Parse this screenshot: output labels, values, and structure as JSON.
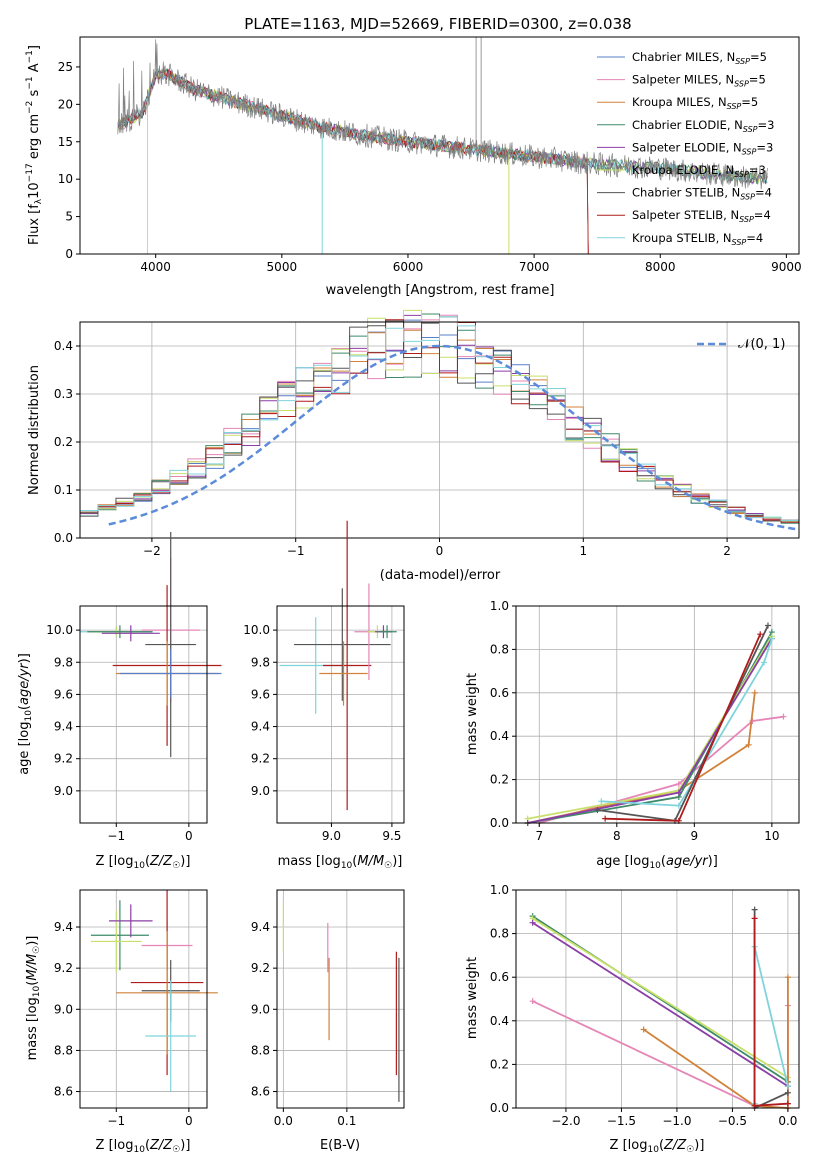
{
  "title": "PLATE=1163, MJD=52669, FIBERID=0300, z=0.038",
  "colors": {
    "Chabrier MILES": "#5a7fc9",
    "Salpeter MILES": "#e585b8",
    "Kroupa MILES": "#d1823a",
    "Chabrier ELODIE": "#3e8a6a",
    "Salpeter ELODIE": "#8a3fa6",
    "Kroupa ELODIE": "#c8e06a",
    "Chabrier STELIB": "#555555",
    "Salpeter STELIB": "#b01c1c",
    "Kroupa STELIB": "#7fd4db",
    "data": "#808080",
    "normal": "#5b8bd9",
    "grid": "#b0b0b0"
  },
  "panels": {
    "spectrum": {
      "xlabel": "wavelength [Angstrom, rest frame]",
      "ylabel_main": "Flux [f",
      "ylabel_sub": "λ",
      "ylabel_mid": "10",
      "ylabel_exp1": "−17",
      "ylabel_rest": " erg cm",
      "ylabel_exp2": "−2",
      "ylabel_s": " s",
      "ylabel_exp3": "−1",
      "ylabel_end": " A",
      "ylabel_exp4": "−1",
      "ylabel_close": "]",
      "xticks": [
        "4000",
        "5000",
        "6000",
        "7000",
        "8000",
        "9000"
      ],
      "yticks": [
        "0",
        "5",
        "10",
        "15",
        "20",
        "25"
      ]
    },
    "residuals": {
      "xlabel": "(data-model)/error",
      "ylabel": "Normed distribution",
      "xticks": [
        "−2",
        "−1",
        "0",
        "1",
        "2"
      ],
      "yticks": [
        "0.0",
        "0.1",
        "0.2",
        "0.3",
        "0.4"
      ],
      "normal_label": "𝒩(0, 1)"
    },
    "age_Z": {
      "xlabel": "Z [log10(Z/Z☉)]",
      "ylabel": "age  [log10(age/yr)]",
      "xticks": [
        "−1",
        "0"
      ],
      "yticks": [
        "9.0",
        "9.2",
        "9.4",
        "9.6",
        "9.8",
        "10.0"
      ]
    },
    "age_mass": {
      "xlabel": "mass [log10(M/M☉)]",
      "xticks": [
        "9.0",
        "9.5"
      ],
      "yticks": [
        "9.0",
        "9.2",
        "9.4",
        "9.6",
        "9.8",
        "10.0"
      ]
    },
    "weight_age": {
      "xlabel": "age  [log10(age/yr)]",
      "ylabel": "mass weight",
      "xticks": [
        "7",
        "8",
        "9",
        "10"
      ],
      "yticks": [
        "0.0",
        "0.2",
        "0.4",
        "0.6",
        "0.8",
        "1.0"
      ]
    },
    "mass_Z": {
      "xlabel": "Z [log10(Z/Z☉)]",
      "ylabel": "mass [log10(M/M☉)]",
      "xticks": [
        "−1",
        "0"
      ],
      "yticks": [
        "8.6",
        "8.8",
        "9.0",
        "9.2",
        "9.4"
      ]
    },
    "mass_ebv": {
      "xlabel": "E(B-V)",
      "xticks": [
        "0.0",
        "0.1"
      ],
      "yticks": [
        "8.6",
        "8.8",
        "9.0",
        "9.2",
        "9.4"
      ]
    },
    "weight_Z": {
      "xlabel": "Z [log10(Z/Z☉)]",
      "ylabel": "mass weight",
      "xticks": [
        "−2.0",
        "−1.5",
        "−1.0",
        "−0.5",
        "0.0"
      ],
      "yticks": [
        "0.0",
        "0.2",
        "0.4",
        "0.6",
        "0.8",
        "1.0"
      ]
    }
  },
  "legend": [
    {
      "name": "Chabrier MILES",
      "nssp": "5"
    },
    {
      "name": "Salpeter MILES",
      "nssp": "5"
    },
    {
      "name": "Kroupa MILES",
      "nssp": "5"
    },
    {
      "name": "Chabrier ELODIE",
      "nssp": "3"
    },
    {
      "name": "Salpeter ELODIE",
      "nssp": "3"
    },
    {
      "name": "Kroupa ELODIE",
      "nssp": "3"
    },
    {
      "name": "Chabrier STELIB",
      "nssp": "4"
    },
    {
      "name": "Salpeter STELIB",
      "nssp": "4"
    },
    {
      "name": "Kroupa STELIB",
      "nssp": "4"
    }
  ],
  "chart_data": [
    {
      "type": "line",
      "panel": "spectrum",
      "xlim": [
        3400,
        9100
      ],
      "ylim": [
        0,
        29
      ],
      "trend_wavelength": [
        3700,
        3900,
        4000,
        4100,
        4300,
        4600,
        5000,
        5300,
        5600,
        6000,
        6500,
        7000,
        7500,
        8000,
        8500,
        8850
      ],
      "trend_flux": [
        17,
        19,
        24,
        24,
        22,
        20.5,
        18.5,
        17,
        16,
        15,
        14,
        13,
        12,
        11.5,
        10.5,
        10
      ]
    },
    {
      "type": "line",
      "panel": "residuals",
      "xlim": [
        -2.5,
        2.5
      ],
      "ylim": [
        0,
        0.45
      ],
      "normal": {
        "mean": 0,
        "sigma": 1,
        "peak": 0.4
      }
    },
    {
      "type": "scatter",
      "panel": "age_Z",
      "xlim": [
        -1.5,
        0.25
      ],
      "ylim": [
        8.8,
        10.15
      ],
      "points": [
        {
          "series": "Kroupa STELIB",
          "x": -1.0,
          "y": 9.99,
          "xerr": 0.5,
          "yerr": 0.03
        },
        {
          "series": "Kroupa ELODIE",
          "x": -1.0,
          "y": 9.99,
          "xerr": 0.4,
          "yerr": 0.03
        },
        {
          "series": "Chabrier ELODIE",
          "x": -0.95,
          "y": 9.99,
          "xerr": 0.45,
          "yerr": 0.04
        },
        {
          "series": "Salpeter ELODIE",
          "x": -0.8,
          "y": 9.98,
          "xerr": 0.4,
          "yerr": 0.05
        },
        {
          "series": "Salpeter MILES",
          "x": -0.25,
          "y": 10.0,
          "xerr": 0.4,
          "yerr": 0.45
        },
        {
          "series": "Chabrier STELIB",
          "x": -0.25,
          "y": 9.91,
          "xerr": 0.35,
          "yerr": 0.7
        },
        {
          "series": "Salpeter STELIB",
          "x": -0.3,
          "y": 9.78,
          "xerr": 0.75,
          "yerr": 0.5
        },
        {
          "series": "Kroupa MILES",
          "x": -0.3,
          "y": 9.73,
          "xerr": 0.7,
          "yerr": 0.2
        },
        {
          "series": "Chabrier MILES",
          "x": -0.25,
          "y": 9.73,
          "xerr": 0.7,
          "yerr": 0.15
        }
      ]
    },
    {
      "type": "scatter",
      "panel": "age_mass",
      "xlim": [
        8.55,
        9.6
      ],
      "ylim": [
        8.8,
        10.15
      ],
      "points": [
        {
          "series": "Kroupa STELIB",
          "x": 8.87,
          "y": 9.78,
          "xerr": 0.3,
          "yerr": 0.3
        },
        {
          "series": "Chabrier STELIB",
          "x": 9.09,
          "y": 9.91,
          "xerr": 0.4,
          "yerr": 0.35
        },
        {
          "series": "Salpeter STELIB",
          "x": 9.13,
          "y": 9.78,
          "xerr": 0.2,
          "yerr": 0.9
        },
        {
          "series": "Kroupa MILES",
          "x": 9.1,
          "y": 9.73,
          "xerr": 0.2,
          "yerr": 0.2
        },
        {
          "series": "Salpeter MILES",
          "x": 9.31,
          "y": 9.99,
          "xerr": 0.12,
          "yerr": 0.3
        },
        {
          "series": "Kroupa ELODIE",
          "x": 9.38,
          "y": 9.99,
          "xerr": 0.08,
          "yerr": 0.04
        },
        {
          "series": "Salpeter ELODIE",
          "x": 9.43,
          "y": 9.99,
          "xerr": 0.07,
          "yerr": 0.04
        },
        {
          "series": "Chabrier ELODIE",
          "x": 9.46,
          "y": 9.99,
          "xerr": 0.08,
          "yerr": 0.04
        }
      ]
    },
    {
      "type": "line",
      "panel": "weight_age",
      "xlim": [
        6.7,
        10.35
      ],
      "ylim": [
        0,
        1.0
      ],
      "series": [
        {
          "name": "Salpeter MILES",
          "x": [
            7.0,
            8.8,
            9.75,
            10.15
          ],
          "y": [
            0.0,
            0.18,
            0.47,
            0.49
          ]
        },
        {
          "name": "Kroupa MILES",
          "x": [
            6.85,
            8.8,
            9.7,
            9.78
          ],
          "y": [
            0.0,
            0.15,
            0.36,
            0.6
          ]
        },
        {
          "name": "Chabrier ELODIE",
          "x": [
            6.85,
            8.8,
            10.0
          ],
          "y": [
            0.0,
            0.12,
            0.88
          ]
        },
        {
          "name": "Kroupa ELODIE",
          "x": [
            6.85,
            8.8,
            10.0
          ],
          "y": [
            0.02,
            0.15,
            0.86
          ]
        },
        {
          "name": "Salpeter ELODIE",
          "x": [
            6.85,
            8.8,
            10.0
          ],
          "y": [
            0.0,
            0.14,
            0.85
          ]
        },
        {
          "name": "Kroupa STELIB",
          "x": [
            7.8,
            8.8,
            9.9,
            10.0
          ],
          "y": [
            0.1,
            0.08,
            0.74,
            0.85
          ]
        },
        {
          "name": "Chabrier STELIB",
          "x": [
            7.75,
            8.75,
            9.95
          ],
          "y": [
            0.06,
            0.01,
            0.91
          ]
        },
        {
          "name": "Salpeter STELIB",
          "x": [
            7.85,
            8.8,
            9.85
          ],
          "y": [
            0.02,
            0.01,
            0.87
          ]
        }
      ]
    },
    {
      "type": "scatter",
      "panel": "mass_Z",
      "xlim": [
        -1.5,
        0.25
      ],
      "ylim": [
        8.52,
        9.58
      ],
      "points": [
        {
          "series": "Chabrier ELODIE",
          "x": -0.95,
          "y": 9.36,
          "xerr": 0.4,
          "yerr": 0.17
        },
        {
          "series": "Kroupa ELODIE",
          "x": -1.0,
          "y": 9.33,
          "xerr": 0.35,
          "yerr": 0.15
        },
        {
          "series": "Salpeter ELODIE",
          "x": -0.8,
          "y": 9.43,
          "xerr": 0.3,
          "yerr": 0.08
        },
        {
          "series": "Salpeter MILES",
          "x": -0.3,
          "y": 9.31,
          "xerr": 0.35,
          "yerr": 0.12
        },
        {
          "series": "Salpeter STELIB",
          "x": -0.3,
          "y": 9.13,
          "xerr": 0.5,
          "yerr": 0.45
        },
        {
          "series": "Chabrier STELIB",
          "x": -0.25,
          "y": 9.09,
          "xerr": 0.4,
          "yerr": 0.15
        },
        {
          "series": "Kroupa MILES",
          "x": -0.3,
          "y": 9.08,
          "xerr": 0.7,
          "yerr": 0.3
        },
        {
          "series": "Kroupa STELIB",
          "x": -0.25,
          "y": 8.87,
          "xerr": 0.35,
          "yerr": 0.27
        }
      ]
    },
    {
      "type": "scatter",
      "panel": "mass_ebv",
      "xlim": [
        -0.01,
        0.19
      ],
      "ylim": [
        8.52,
        9.58
      ],
      "points": [
        {
          "series": "Kroupa ELODIE",
          "x": 0.0,
          "y": 9.4,
          "xerr": 0.0,
          "yerr": 0.12
        },
        {
          "series": "Salpeter MILES",
          "x": 0.07,
          "y": 9.3,
          "xerr": 0.0,
          "yerr": 0.12
        },
        {
          "series": "Kroupa MILES",
          "x": 0.072,
          "y": 9.05,
          "xerr": 0.0,
          "yerr": 0.2
        },
        {
          "series": "Salpeter STELIB",
          "x": 0.178,
          "y": 8.98,
          "xerr": 0.0,
          "yerr": 0.3
        },
        {
          "series": "Chabrier STELIB",
          "x": 0.182,
          "y": 8.9,
          "xerr": 0.0,
          "yerr": 0.35
        }
      ]
    },
    {
      "type": "line",
      "panel": "weight_Z",
      "xlim": [
        -2.45,
        0.1
      ],
      "ylim": [
        0,
        1.0
      ],
      "series": [
        {
          "name": "Chabrier ELODIE",
          "x": [
            -2.3,
            0.0
          ],
          "y": [
            0.88,
            0.12
          ]
        },
        {
          "name": "Kroupa ELODIE",
          "x": [
            -2.3,
            0.0
          ],
          "y": [
            0.87,
            0.14
          ]
        },
        {
          "name": "Salpeter ELODIE",
          "x": [
            -2.3,
            0.0
          ],
          "y": [
            0.85,
            0.1
          ]
        },
        {
          "name": "Salpeter MILES",
          "x": [
            -2.3,
            -0.3,
            0.0,
            0.0
          ],
          "y": [
            0.49,
            0.01,
            0.02,
            0.47
          ]
        },
        {
          "name": "Kroupa MILES",
          "x": [
            -1.3,
            -0.3,
            0.0,
            0.0
          ],
          "y": [
            0.36,
            0.01,
            0.0,
            0.6
          ]
        },
        {
          "name": "Kroupa STELIB",
          "x": [
            -0.3,
            -0.3,
            0.0
          ],
          "y": [
            0.02,
            0.74,
            0.1
          ]
        },
        {
          "name": "Chabrier STELIB",
          "x": [
            -0.3,
            -0.3,
            0.0
          ],
          "y": [
            0.91,
            0.0,
            0.07
          ]
        },
        {
          "name": "Salpeter STELIB",
          "x": [
            -0.3,
            -0.3,
            0.0
          ],
          "y": [
            0.87,
            0.01,
            0.02
          ]
        }
      ]
    }
  ]
}
